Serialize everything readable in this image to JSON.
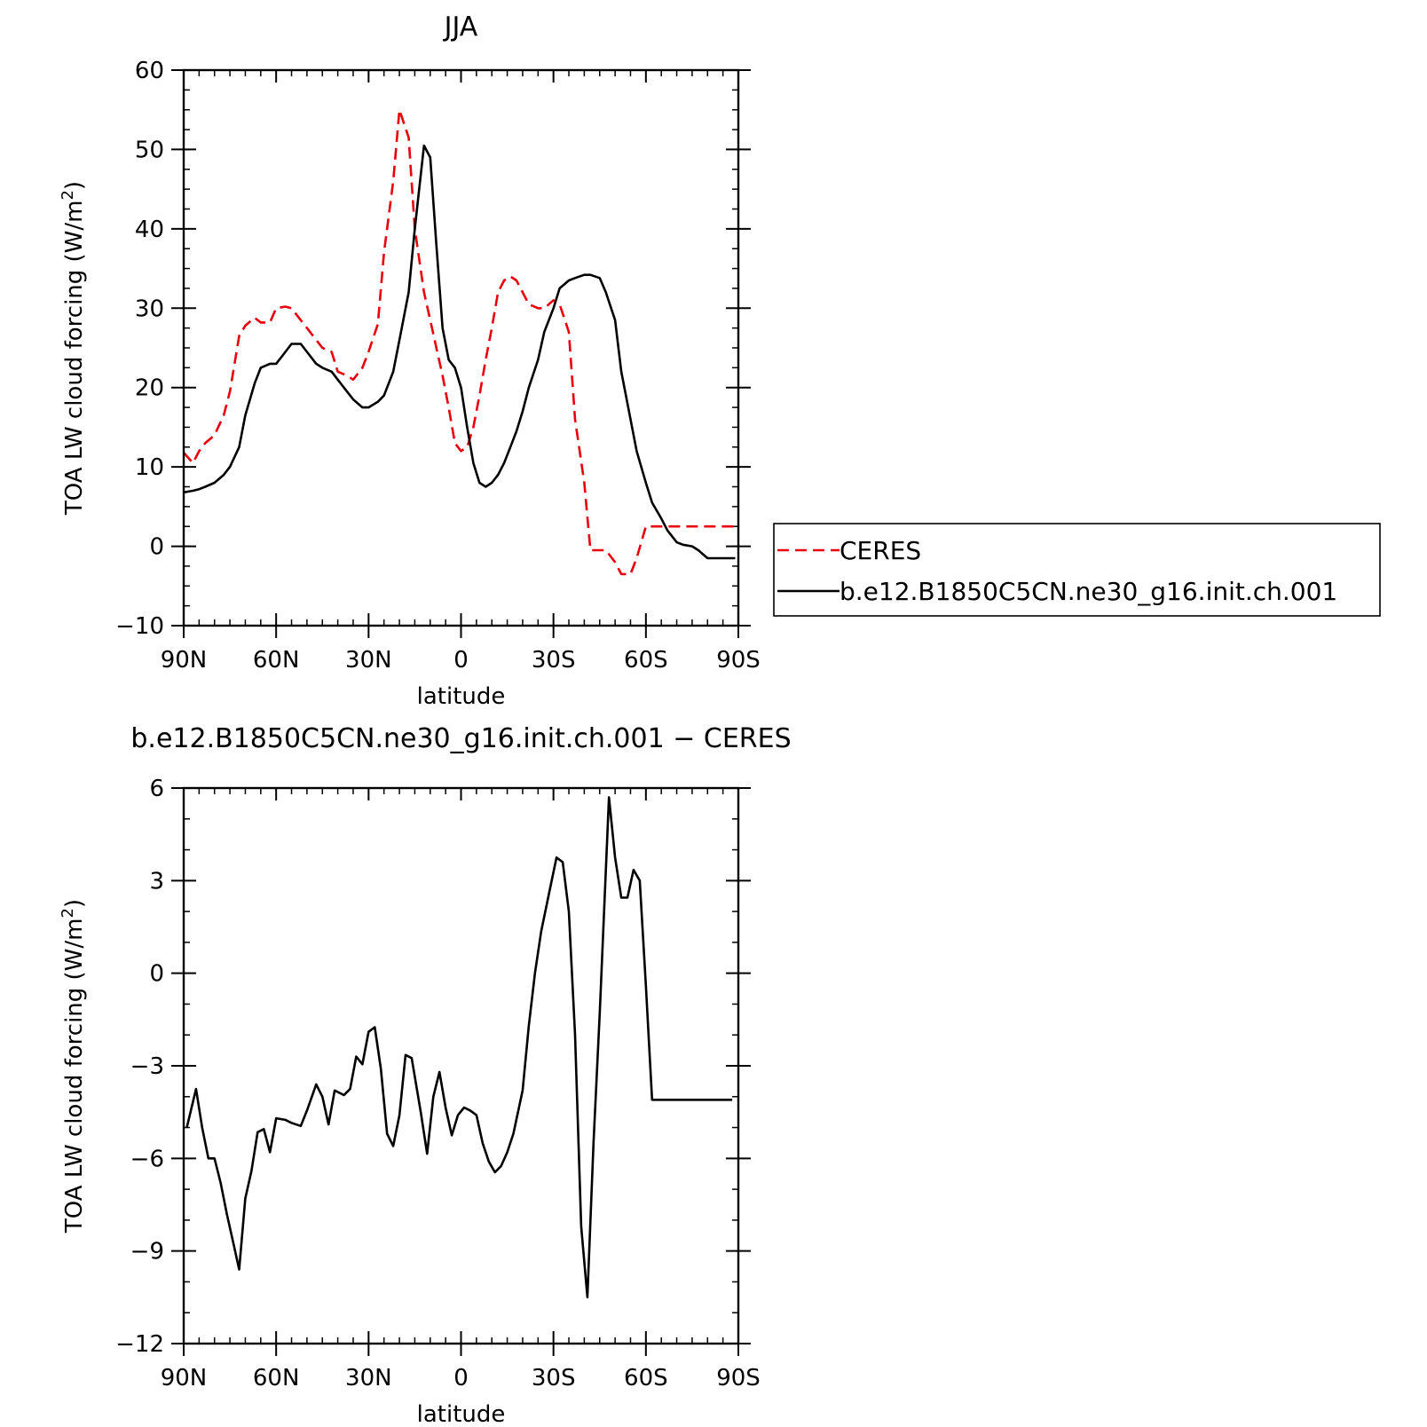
{
  "chart_data": [
    {
      "type": "line",
      "title": "JJA",
      "xlabel": "latitude",
      "ylabel": "TOA LW cloud forcing (W/m",
      "ylabel_sup": "2",
      "ylabel_end": ")",
      "xlim": [
        90,
        -90
      ],
      "ylim": [
        -10,
        60
      ],
      "x_ticks": [
        90,
        60,
        30,
        0,
        -30,
        -60,
        -90
      ],
      "x_tick_labels": [
        "90N",
        "60N",
        "30N",
        "0",
        "30S",
        "60S",
        "90S"
      ],
      "y_ticks": [
        -10,
        0,
        10,
        20,
        30,
        40,
        50,
        60
      ],
      "y_tick_labels": [
        "−10",
        "0",
        "10",
        "20",
        "30",
        "40",
        "50",
        "60"
      ],
      "legend": "right",
      "series": [
        {
          "name": "CERES",
          "color": "#e8000b",
          "dash": "dashed",
          "x": [
            90,
            87,
            85,
            83,
            80,
            77,
            75,
            72,
            70,
            67,
            65,
            62,
            60,
            57,
            55,
            52,
            50,
            47,
            45,
            42,
            40,
            37,
            35,
            32,
            30,
            27,
            25,
            22,
            20,
            17,
            15,
            12,
            10,
            8,
            6,
            4,
            2,
            0,
            -2,
            -4,
            -6,
            -8,
            -10,
            -12,
            -14,
            -16,
            -18,
            -20,
            -22,
            -25,
            -27,
            -30,
            -32,
            -35,
            -37,
            -40,
            -42,
            -45,
            -47,
            -50,
            -52,
            -55,
            -57,
            -60,
            -62,
            -65,
            -67,
            -70,
            -72,
            -75,
            -77,
            -80,
            -82,
            -85,
            -87,
            -89
          ],
          "y": [
            11.8,
            10.5,
            12.0,
            13.0,
            14.0,
            16.5,
            19.5,
            26.5,
            27.8,
            28.8,
            28.2,
            28.2,
            30.0,
            30.2,
            30.0,
            28.5,
            27.5,
            26.0,
            25.0,
            24.5,
            22.0,
            21.5,
            21.0,
            22.5,
            24.5,
            28.0,
            37.0,
            46.0,
            55.0,
            51.5,
            40.0,
            32.0,
            28.5,
            25.0,
            21.5,
            17.5,
            13.0,
            12.0,
            12.5,
            15.0,
            19.0,
            23.5,
            27.5,
            32.0,
            33.5,
            34.0,
            33.5,
            32.0,
            30.5,
            30.0,
            30.0,
            31.0,
            30.5,
            27.0,
            16.0,
            8.0,
            -0.5,
            -0.5,
            -0.5,
            -2.0,
            -3.5,
            -3.5,
            -1.5,
            2.5,
            2.5,
            2.5,
            2.5,
            2.5,
            2.5,
            2.5,
            2.5,
            2.5,
            2.5,
            2.5,
            2.5,
            2.5
          ]
        },
        {
          "name": "b.e12.B1850C5CN.ne30_g16.init.ch.001",
          "color": "#000000",
          "dash": "solid",
          "x": [
            90,
            87,
            85,
            83,
            80,
            77,
            75,
            72,
            70,
            67,
            65,
            62,
            60,
            57,
            55,
            52,
            50,
            47,
            45,
            42,
            40,
            37,
            35,
            32,
            30,
            27,
            25,
            22,
            20,
            17,
            15,
            12,
            10,
            8,
            6,
            4,
            2,
            0,
            -2,
            -4,
            -6,
            -8,
            -10,
            -12,
            -14,
            -16,
            -18,
            -20,
            -22,
            -25,
            -27,
            -30,
            -32,
            -35,
            -37,
            -40,
            -42,
            -45,
            -47,
            -50,
            -52,
            -55,
            -57,
            -60,
            -62,
            -65,
            -67,
            -70,
            -72,
            -75,
            -77,
            -80,
            -82,
            -85,
            -87,
            -89
          ],
          "y": [
            6.8,
            7.0,
            7.2,
            7.5,
            8.0,
            9.0,
            10.0,
            12.5,
            16.5,
            20.5,
            22.5,
            23.0,
            23.0,
            24.5,
            25.5,
            25.5,
            24.5,
            23.0,
            22.5,
            22.0,
            21.0,
            19.5,
            18.5,
            17.5,
            17.5,
            18.2,
            19.0,
            22.0,
            26.0,
            32.0,
            40.0,
            50.5,
            49.0,
            38.0,
            27.5,
            23.5,
            22.5,
            20.0,
            15.0,
            10.5,
            8.0,
            7.5,
            8.0,
            9.0,
            10.5,
            12.5,
            14.5,
            17.0,
            20.0,
            23.5,
            27.0,
            30.0,
            32.5,
            33.5,
            33.8,
            34.2,
            34.2,
            33.8,
            32.0,
            28.5,
            22.0,
            16.0,
            12.0,
            8.0,
            5.5,
            3.5,
            2.0,
            0.5,
            0.2,
            0.0,
            -0.5,
            -1.5,
            -1.5,
            -1.5,
            -1.5,
            -1.5
          ]
        }
      ]
    },
    {
      "type": "line",
      "title": "b.e12.B1850C5CN.ne30_g16.init.ch.001  −  CERES",
      "xlabel": "latitude",
      "ylabel": "TOA LW cloud forcing (W/m",
      "ylabel_sup": "2",
      "ylabel_end": ")",
      "xlim": [
        90,
        -90
      ],
      "ylim": [
        -12,
        6
      ],
      "x_ticks": [
        90,
        60,
        30,
        0,
        -30,
        -60,
        -90
      ],
      "x_tick_labels": [
        "90N",
        "60N",
        "30N",
        "0",
        "30S",
        "60S",
        "90S"
      ],
      "y_ticks": [
        -12,
        -9,
        -6,
        -3,
        0,
        3,
        6
      ],
      "y_tick_labels": [
        "−12",
        "−9",
        "−6",
        "−3",
        "0",
        "3",
        "6"
      ],
      "series": [
        {
          "color": "#000000",
          "dash": "solid",
          "x": [
            89,
            86,
            84,
            82,
            80,
            78,
            76,
            74,
            72,
            70,
            68,
            66,
            64,
            62,
            60,
            57,
            55,
            52,
            50,
            47,
            45,
            43,
            41,
            38,
            36,
            34,
            32,
            30,
            28,
            26,
            24,
            22,
            20,
            18,
            16,
            13,
            11,
            9,
            7,
            5,
            3,
            1,
            -1,
            -3,
            -5,
            -7,
            -9,
            -11,
            -13,
            -15,
            -17,
            -20,
            -22,
            -24,
            -26,
            -29,
            -31,
            -33,
            -35,
            -37,
            -39,
            -41,
            -43,
            -45,
            -48,
            -50,
            -52,
            -54,
            -56,
            -58,
            -60,
            -62,
            -64,
            -66,
            -68,
            -70,
            -72,
            -74,
            -76,
            -78,
            -80,
            -82,
            -84,
            -86,
            -88
          ],
          "y": [
            -5.0,
            -3.75,
            -5.0,
            -6.0,
            -6.0,
            -6.8,
            -7.8,
            -8.7,
            -9.6,
            -7.3,
            -6.4,
            -5.15,
            -5.05,
            -5.8,
            -4.7,
            -4.75,
            -4.85,
            -4.95,
            -4.45,
            -3.6,
            -4.0,
            -4.9,
            -3.8,
            -3.95,
            -3.75,
            -2.7,
            -2.95,
            -1.9,
            -1.75,
            -3.1,
            -5.2,
            -5.6,
            -4.6,
            -2.65,
            -2.75,
            -4.55,
            -5.85,
            -4.0,
            -3.2,
            -4.35,
            -5.25,
            -4.6,
            -4.35,
            -4.45,
            -4.6,
            -5.5,
            -6.1,
            -6.45,
            -6.25,
            -5.8,
            -5.2,
            -3.8,
            -1.7,
            0.0,
            1.35,
            2.8,
            3.75,
            3.6,
            2.0,
            -2.0,
            -8.2,
            -10.5,
            -5.5,
            -1.3,
            5.7,
            3.75,
            2.45,
            2.45,
            3.35,
            3.0,
            -0.4,
            -4.1,
            -4.1,
            -4.1,
            -4.1,
            -4.1,
            -4.1,
            -4.1,
            -4.1,
            -4.1,
            -4.1,
            -4.1,
            -4.1,
            -4.1,
            -4.1
          ]
        }
      ]
    }
  ]
}
